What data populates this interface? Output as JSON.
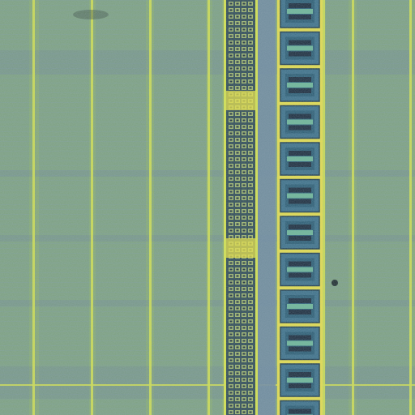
{
  "image": {
    "subject": "chip-die-micrograph",
    "palette": {
      "substrate": "#7fa46e",
      "substrate_dark": "#5f7f86",
      "metal_line": "#d9e64a",
      "via_dark": "#1a2a3a",
      "pad_fill": "#2b5d73",
      "pad_frame": "#e8e04a",
      "stripe": "#6d8fa0"
    }
  }
}
